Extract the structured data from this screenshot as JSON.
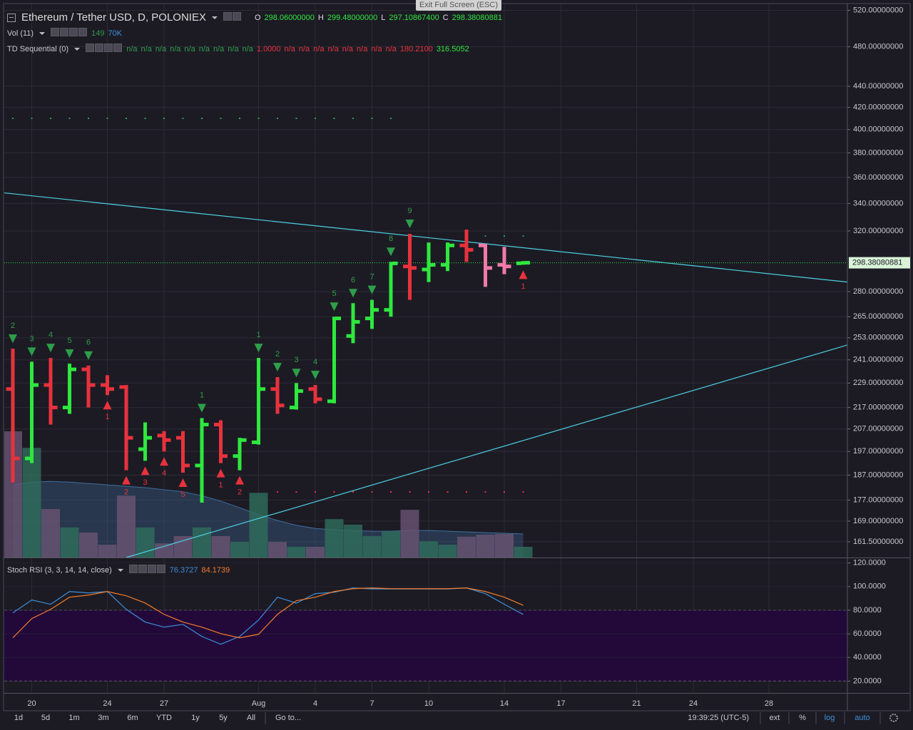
{
  "chart_data": [
    {
      "type": "ohlc",
      "title": "Ethereum / Tether USD, D, POLONIEX",
      "ohlc_header": [
        {
          "key": "O",
          "label": "298.06000000"
        },
        {
          "key": "H",
          "label": "299.48000000"
        },
        {
          "key": "L",
          "label": "297.10867400"
        },
        {
          "key": "C",
          "label": "298.38080881"
        }
      ],
      "log_scale": true,
      "grid": true,
      "ylim": [
        156,
        527
      ],
      "yticks": [
        {
          "value": 520,
          "label": "520.00000000"
        },
        {
          "value": 480,
          "label": "480.00000000"
        },
        {
          "value": 440,
          "label": "440.00000000"
        },
        {
          "value": 420,
          "label": "420.00000000"
        },
        {
          "value": 400,
          "label": "400.00000000"
        },
        {
          "value": 380,
          "label": "380.00000000"
        },
        {
          "value": 360,
          "label": "360.00000000"
        },
        {
          "value": 340,
          "label": "340.00000000"
        },
        {
          "value": 320,
          "label": "320.00000000"
        },
        {
          "value": 280,
          "label": "280.00000000"
        },
        {
          "value": 265,
          "label": "265.00000000"
        },
        {
          "value": 253,
          "label": "253.00000000"
        },
        {
          "value": 241,
          "label": "241.00000000"
        },
        {
          "value": 229,
          "label": "229.00000000"
        },
        {
          "value": 217,
          "label": "217.00000000"
        },
        {
          "value": 207,
          "label": "207.00000000"
        },
        {
          "value": 197,
          "label": "197.00000000"
        },
        {
          "value": 187,
          "label": "187.00000000"
        },
        {
          "value": 177,
          "label": "177.00000000"
        },
        {
          "value": 169,
          "label": "169.00000000"
        },
        {
          "value": 161.5,
          "label": "161.50000000"
        }
      ],
      "series": [
        {
          "open": [
            226,
            194,
            228,
            217,
            236,
            228,
            227,
            198,
            204,
            203,
            191,
            209,
            195,
            201,
            226,
            217,
            226,
            220,
            254,
            264,
            269,
            296,
            294,
            297,
            310,
            310,
            297,
            298.06,
            null,
            null,
            null,
            null,
            null,
            null,
            null,
            null,
            null,
            null,
            null,
            null,
            null,
            null,
            null,
            null
          ],
          "high": [
            247,
            240,
            242,
            239,
            238,
            233,
            228,
            210,
            206,
            206,
            212,
            211,
            203,
            242,
            232,
            229,
            228,
            265,
            273,
            275,
            299,
            318,
            312,
            312,
            321,
            311,
            309,
            299.48,
            null,
            null,
            null,
            null,
            null,
            null,
            null,
            null,
            null,
            null,
            null,
            null,
            null,
            null,
            null,
            null
          ],
          "low": [
            184,
            192,
            209,
            214,
            217,
            223,
            189,
            193,
            197,
            188,
            176,
            192,
            189,
            200,
            214,
            216,
            219,
            219,
            250,
            258,
            265,
            275,
            286,
            293,
            299,
            283,
            291,
            297.108674,
            null,
            null,
            null,
            null,
            null,
            null,
            null,
            null,
            null,
            null,
            null,
            null,
            null,
            null,
            null,
            null
          ],
          "close": [
            194,
            228,
            217,
            236,
            228,
            226,
            203,
            203,
            202,
            191,
            209,
            195,
            202,
            226,
            218,
            225,
            221,
            264,
            262,
            269,
            298,
            295,
            297,
            310,
            307,
            295,
            296,
            298.38080881,
            null,
            null,
            null,
            null,
            null,
            null,
            null,
            null,
            null,
            null,
            null,
            null,
            null,
            null,
            null,
            null
          ],
          "colors": [
            "#e8323c",
            "#2ee83e",
            "#e8323c",
            "#2ee83e",
            "#e8323c",
            "#e8323c",
            "#e8323c",
            "#2ee83e",
            "#e8323c",
            "#e8323c",
            "#2ee83e",
            "#e8323c",
            "#2ee83e",
            "#2ee83e",
            "#e8323c",
            "#2ee83e",
            "#e8323c",
            "#2ee83e",
            "#2ee83e",
            "#2ee83e",
            "#2ee83e",
            "#e8323c",
            "#2ee83e",
            "#2ee83e",
            "#e8323c",
            "#f07aa8",
            "#f07aa8",
            "#2ee83e",
            null,
            null,
            null,
            null,
            null,
            null,
            null,
            null,
            null,
            null,
            null,
            null,
            null,
            null,
            null,
            null
          ]
        }
      ],
      "volume": {
        "legend": "Vol (11)",
        "legend_values": [
          "149",
          "70K"
        ],
        "legend_colors": [
          "#2e9e4a",
          "#3d8fd9"
        ],
        "ylim": [
          0,
          1600
        ],
        "up_color": "#2f6e5c",
        "down_color": "#6a5474",
        "ma_color": "#3f6e9e",
        "values": [
          365,
          317,
          140,
          87,
          72,
          37,
          179,
          87,
          41,
          62,
          87,
          62,
          45,
          187,
          45,
          31,
          31,
          111,
          95,
          62,
          76,
          138,
          47,
          37,
          60,
          66,
          68,
          31,
          null,
          null,
          null,
          null,
          null,
          null,
          null,
          null,
          null,
          null,
          null,
          null,
          null,
          null,
          null,
          null
        ],
        "ma": [
          210,
          218,
          220,
          218,
          214,
          210,
          206,
          202,
          196,
          190,
          179,
          163,
          144,
          124,
          107,
          93,
          84,
          80,
          78,
          76,
          76,
          78,
          78,
          76,
          74,
          72,
          70,
          68,
          null,
          null,
          null,
          null,
          null,
          null,
          null,
          null,
          null,
          null,
          null,
          null,
          null,
          null,
          null,
          null
        ]
      },
      "td_sequential": {
        "legend": "TD Sequential (0)",
        "legend_values": [
          "n/a",
          "n/a",
          "n/a",
          "n/a",
          "n/a",
          "n/a",
          "n/a",
          "n/a",
          "n/a",
          "1.0000",
          "n/a",
          "n/a",
          "n/a",
          "n/a",
          "n/a",
          "n/a",
          "n/a",
          "n/a",
          "180.2100",
          "316.5052"
        ],
        "legend_colors": [
          "#2e9e4a",
          "#2e9e4a",
          "#2e9e4a",
          "#2e9e4a",
          "#2e9e4a",
          "#2e9e4a",
          "#2e9e4a",
          "#2e9e4a",
          "#2e9e4a",
          "#e8323c",
          "#e8323c",
          "#e8323c",
          "#e8323c",
          "#e8323c",
          "#e8323c",
          "#e8323c",
          "#e8323c",
          "#e8323c",
          "#e8323c",
          "#2ee83e"
        ],
        "sell_color": "#2e9e4a",
        "buy_color": "#e8323c",
        "sell_counts": [
          2,
          3,
          4,
          5,
          6,
          null,
          null,
          null,
          null,
          null,
          1,
          null,
          null,
          1,
          2,
          3,
          4,
          5,
          6,
          7,
          8,
          9,
          null,
          null,
          null,
          null,
          null,
          null,
          null,
          null,
          null,
          null,
          null,
          null,
          null,
          null,
          null,
          null,
          null,
          null,
          null,
          null,
          null,
          null
        ],
        "buy_counts": [
          null,
          null,
          null,
          null,
          null,
          1,
          2,
          3,
          4,
          5,
          null,
          1,
          2,
          null,
          null,
          null,
          null,
          null,
          null,
          null,
          null,
          null,
          null,
          null,
          null,
          null,
          null,
          1,
          null,
          null,
          null,
          null,
          null,
          null,
          null,
          null,
          null,
          null,
          null,
          null,
          null,
          null,
          null,
          null
        ],
        "levels": [
          {
            "value": 410,
            "start": 0,
            "end": 20,
            "color": "#2e9e4a"
          },
          {
            "value": 180.21,
            "start": 14,
            "end": 27,
            "color": "#e8323c"
          },
          {
            "value": 316.5052,
            "start": 25,
            "end": 27,
            "color": "#2e9e4a"
          }
        ]
      },
      "trendlines": [
        {
          "color": "#4dd0e1",
          "points": [
            [
              -0.45,
              348
            ],
            [
              44.15,
              286
            ]
          ]
        },
        {
          "color": "#4dd0e1",
          "points": [
            [
              6,
              156
            ],
            [
              44.15,
              249
            ]
          ]
        }
      ],
      "last_price": {
        "value": 298.38080881,
        "label": "298.38080881",
        "color": "#2ee83e"
      }
    },
    {
      "type": "line",
      "title": "Stoch RSI (3, 3, 14, 14, close)",
      "categories": [
        null,
        "20",
        null,
        null,
        null,
        "24",
        null,
        null,
        "27",
        null,
        null,
        null,
        null,
        "Aug",
        null,
        null,
        "4",
        null,
        null,
        "7",
        null,
        null,
        "10",
        null,
        null,
        null,
        "14",
        null,
        null,
        "17",
        null,
        null,
        null,
        "21",
        null,
        null,
        "24",
        null,
        null,
        null,
        "28",
        null,
        null,
        null
      ],
      "ylim": [
        10,
        124
      ],
      "yticks": [
        {
          "value": 120,
          "label": "120.0000"
        },
        {
          "value": 100,
          "label": "100.0000"
        },
        {
          "value": 80,
          "label": "80.0000"
        },
        {
          "value": 60,
          "label": "60.0000"
        },
        {
          "value": 40,
          "label": "40.0000"
        },
        {
          "value": 20,
          "label": "20.0000"
        }
      ],
      "band": [
        20,
        80
      ],
      "band_color": "#22093a",
      "series": [
        {
          "color": "#3d8fd9",
          "values": [
            77.7,
            88.6,
            85,
            95.8,
            94.6,
            95.8,
            80.7,
            70,
            65.7,
            68,
            57.8,
            51.2,
            57.8,
            71.7,
            91,
            86,
            94,
            95.2,
            98.8,
            98,
            98,
            98,
            98,
            98,
            98.8,
            94,
            85,
            76.3727,
            null,
            null,
            null,
            null,
            null,
            null,
            null,
            null,
            null,
            null,
            null,
            null,
            null,
            null,
            null,
            null
          ]
        },
        {
          "color": "#f57c2a",
          "values": [
            56.6,
            72.9,
            80.7,
            91,
            92.8,
            95.8,
            92.2,
            86.1,
            76.5,
            70,
            65.7,
            60.2,
            56.6,
            59.6,
            76.5,
            88,
            91,
            95.8,
            98.2,
            98.8,
            98.2,
            98.2,
            98.2,
            98.2,
            98.8,
            95.8,
            91,
            84.1739,
            null,
            null,
            null,
            null,
            null,
            null,
            null,
            null,
            null,
            null,
            null,
            null,
            null,
            null,
            null,
            null
          ]
        }
      ]
    }
  ],
  "tooltip": "Exit Full Screen (ESC)",
  "toolbar": {
    "ranges": [
      "1d",
      "5d",
      "1m",
      "3m",
      "6m",
      "YTD",
      "1y",
      "5y",
      "All"
    ],
    "goto": "Go to...",
    "clock": "19:39:25 (UTC-5)",
    "options": [
      "ext",
      "%",
      "log",
      "auto"
    ],
    "options_active": [
      false,
      false,
      true,
      true
    ]
  }
}
